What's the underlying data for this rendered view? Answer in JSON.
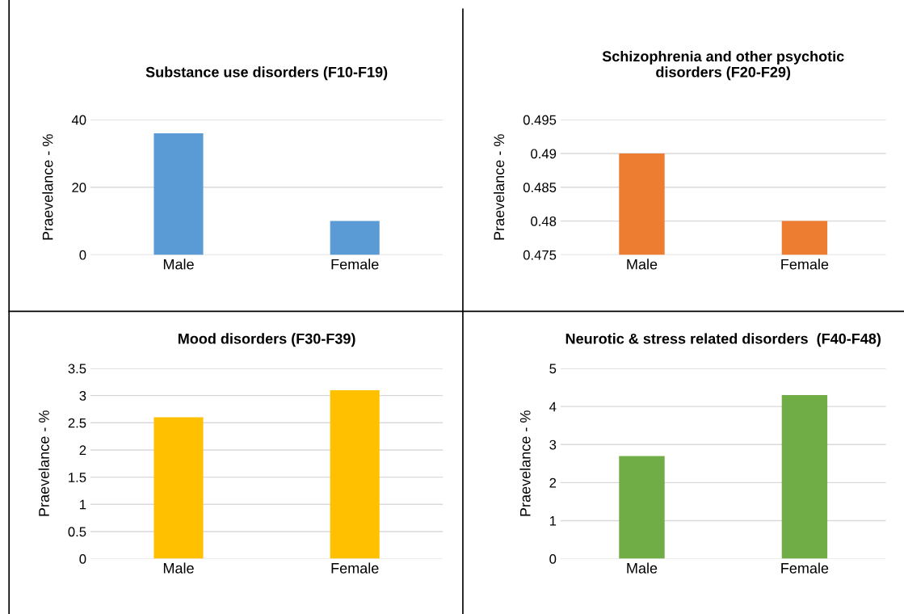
{
  "chart_data": [
    {
      "type": "bar",
      "title": "Substance use disorders (F10-F19)",
      "ylabel": "Praevelance - %",
      "categories": [
        "Male",
        "Female"
      ],
      "values": [
        36,
        10
      ],
      "color": "#5b9bd5",
      "ylim": [
        0,
        40
      ],
      "yticks": [
        0,
        20,
        40
      ],
      "grid": "y"
    },
    {
      "type": "bar",
      "title": "Schizophrenia and other psychotic\ndisorders (F20-F29)",
      "ylabel": "Praevelance - %",
      "categories": [
        "Male",
        "Female"
      ],
      "values": [
        0.49,
        0.48
      ],
      "color": "#ed7d31",
      "ylim": [
        0.475,
        0.495
      ],
      "yticks": [
        0.475,
        0.48,
        0.485,
        0.49,
        0.495
      ],
      "grid": "y"
    },
    {
      "type": "bar",
      "title": "Mood disorders (F30-F39)",
      "ylabel": "Praevelance - %",
      "categories": [
        "Male",
        "Female"
      ],
      "values": [
        2.6,
        3.1
      ],
      "color": "#ffc000",
      "ylim": [
        0,
        3.5
      ],
      "yticks": [
        0,
        0.5,
        1,
        1.5,
        2,
        2.5,
        3,
        3.5
      ],
      "grid": "y"
    },
    {
      "type": "bar",
      "title": "Neurotic & stress related disorders  (F40-F48)",
      "ylabel": "Praevelance - %",
      "categories": [
        "Male",
        "Female"
      ],
      "values": [
        2.7,
        4.3
      ],
      "color": "#70ad47",
      "ylim": [
        0,
        5
      ],
      "yticks": [
        0,
        1,
        2,
        3,
        4,
        5
      ],
      "grid": "y"
    }
  ]
}
